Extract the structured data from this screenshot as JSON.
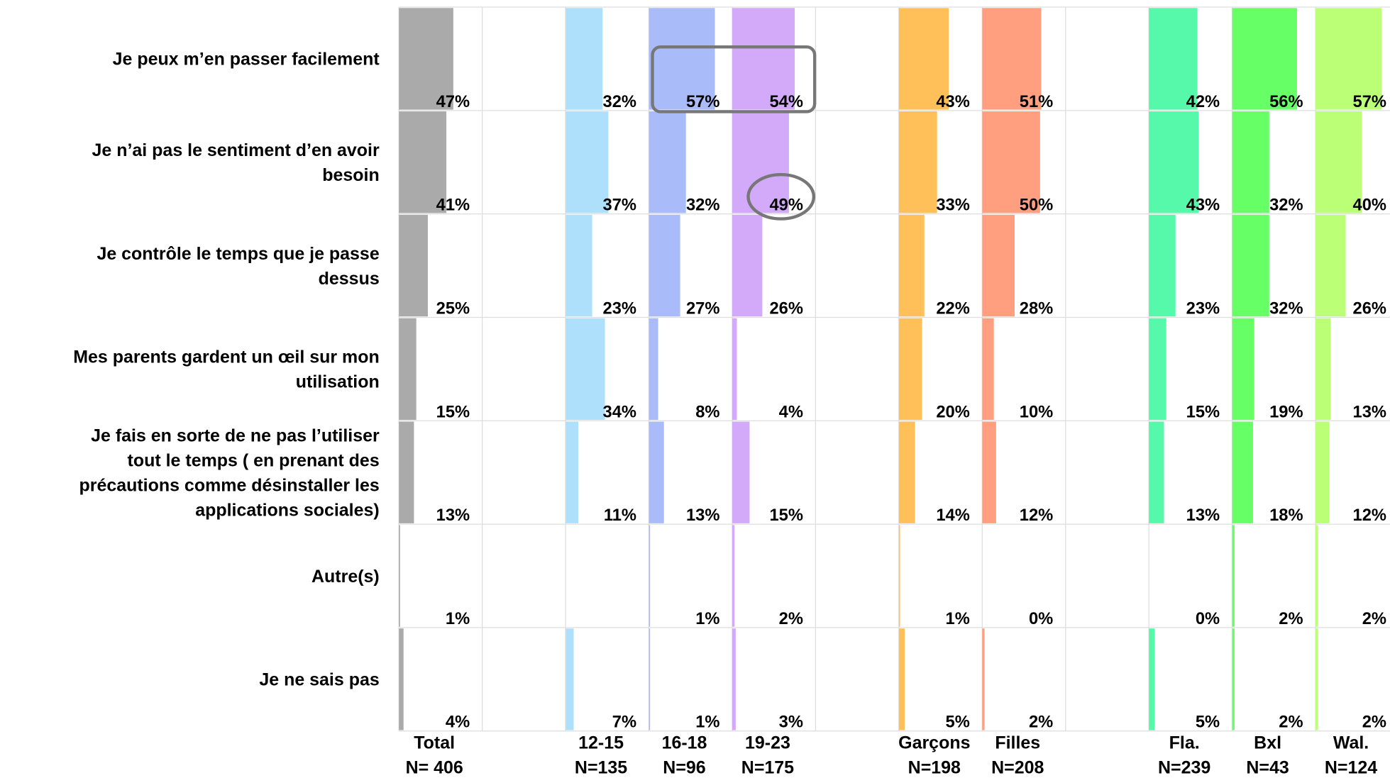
{
  "chart_data": {
    "type": "bar-grid",
    "categories": [
      "Je peux m’en passer facilement",
      "Je n’ai pas le sentiment d’en avoir\nbesoin",
      "Je contrôle le temps que je passe\ndessus",
      "Mes parents gardent un œil sur mon\nutilisation",
      "Je fais en sorte de ne pas l’utiliser\ntout le temps ( en prenant des\nprécautions comme désinstaller les\napplications sociales)",
      "Autre(s)",
      "Je ne sais pas"
    ],
    "xlim": [
      0,
      72
    ],
    "series": [
      {
        "name": "Total",
        "n": "N= 406",
        "color": "#aaaaaa",
        "values": [
          47,
          41,
          25,
          15,
          13,
          1,
          4
        ],
        "value_labels": [
          "47%",
          "41%",
          "25%",
          "15%",
          "13%",
          "1%",
          "4%"
        ]
      },
      {
        "name": "12-15",
        "n": "N=135",
        "color": "#aee0fc",
        "values": [
          32,
          37,
          23,
          34,
          11,
          null,
          7
        ],
        "value_labels": [
          "32%",
          "37%",
          "23%",
          "34%",
          "11%",
          null,
          "7%"
        ]
      },
      {
        "name": "16-18",
        "n": "N=96",
        "color": "#a9bbf9",
        "values": [
          57,
          32,
          27,
          8,
          13,
          1,
          1
        ],
        "value_labels": [
          "57%",
          "32%",
          "27%",
          "8%",
          "13%",
          "1%",
          "1%"
        ]
      },
      {
        "name": "19-23",
        "n": "N=175",
        "color": "#d2aaf9",
        "values": [
          54,
          49,
          26,
          4,
          15,
          2,
          3
        ],
        "value_labels": [
          "54%",
          "49%",
          "26%",
          "4%",
          "15%",
          "2%",
          "3%"
        ]
      },
      {
        "name": "Garçons",
        "n": "N=198",
        "color": "#ffc05a",
        "values": [
          43,
          33,
          22,
          20,
          14,
          1,
          5
        ],
        "value_labels": [
          "43%",
          "33%",
          "22%",
          "20%",
          "14%",
          "1%",
          "5%"
        ]
      },
      {
        "name": "Filles",
        "n": "N=208",
        "color": "#ff9f80",
        "values": [
          51,
          50,
          28,
          10,
          12,
          0,
          2
        ],
        "value_labels": [
          "51%",
          "50%",
          "28%",
          "10%",
          "12%",
          "0%",
          "2%"
        ]
      },
      {
        "name": "Fla.",
        "n": "N=239",
        "color": "#55f9a9",
        "values": [
          42,
          43,
          23,
          15,
          13,
          0,
          5
        ],
        "value_labels": [
          "42%",
          "43%",
          "23%",
          "15%",
          "13%",
          "0%",
          "5%"
        ]
      },
      {
        "name": "Bxl",
        "n": "N=43",
        "color": "#66ff66",
        "values": [
          56,
          32,
          32,
          19,
          18,
          2,
          2
        ],
        "value_labels": [
          "56%",
          "32%",
          "32%",
          "19%",
          "18%",
          "2%",
          "2%"
        ]
      },
      {
        "name": "Wal.",
        "n": "N=124",
        "color": "#bbff77",
        "values": [
          57,
          40,
          26,
          13,
          12,
          2,
          2
        ],
        "value_labels": [
          "57%",
          "40%",
          "26%",
          "13%",
          "12%",
          "2%",
          "2%"
        ]
      }
    ]
  }
}
